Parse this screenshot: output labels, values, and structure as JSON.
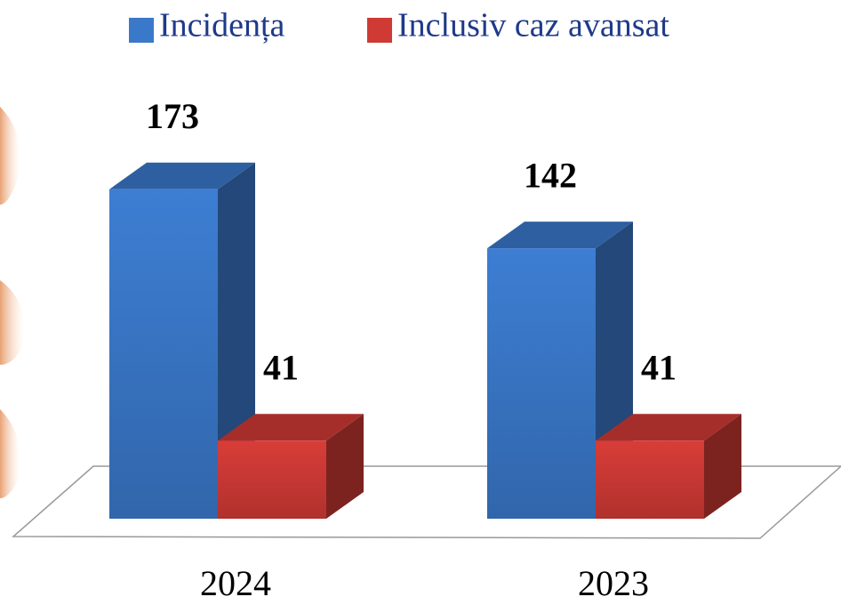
{
  "chart_data": {
    "type": "bar3d",
    "categories": [
      "2024",
      "2023"
    ],
    "series": [
      {
        "name": "Incidența",
        "color": "#3a78c9",
        "values": [
          173,
          142
        ]
      },
      {
        "name": "Inclusiv caz avansat",
        "color": "#cf3a35",
        "values": [
          41,
          41
        ]
      }
    ],
    "legend": "top"
  }
}
